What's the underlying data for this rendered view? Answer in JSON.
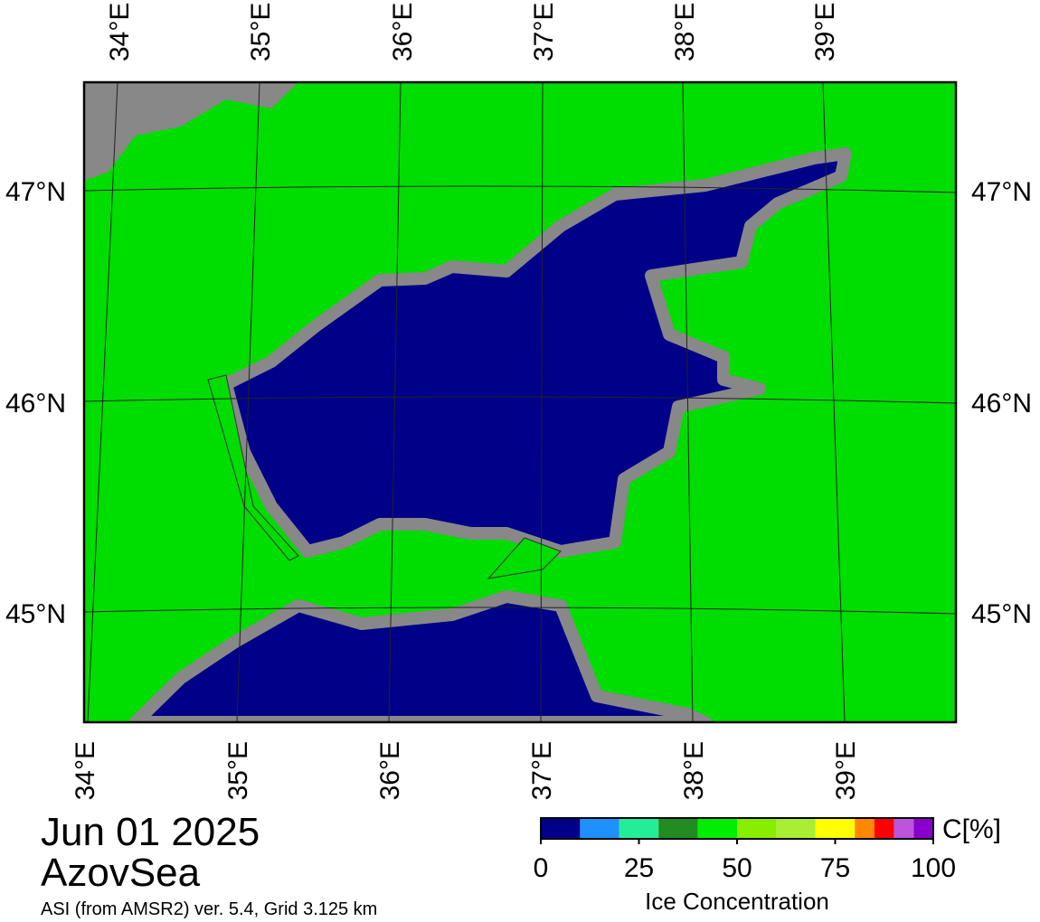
{
  "map": {
    "top_lon_labels": [
      "34°E",
      "35°E",
      "36°E",
      "37°E",
      "38°E",
      "39°E"
    ],
    "bottom_lon_labels": [
      "34°E",
      "35°E",
      "36°E",
      "37°E",
      "38°E",
      "39°E"
    ],
    "left_lat_labels": [
      "47°N",
      "46°N",
      "45°N"
    ],
    "right_lat_labels": [
      "47°N",
      "46°N",
      "45°N"
    ],
    "date": "Jun 01 2025",
    "region": "AzovSea",
    "source": "ASI (from AMSR2) ver. 5.4,  Grid 3.125 km"
  },
  "colorbar": {
    "unit": "C[%]",
    "label": "Ice Concentration",
    "range": [
      0,
      100
    ],
    "ticks": [
      0,
      25,
      50,
      75,
      100
    ],
    "bounds": [
      0,
      10,
      20,
      30,
      40,
      50,
      60,
      70,
      80,
      85,
      90,
      95,
      100
    ],
    "colors": [
      "#000088",
      "#1e90ff",
      "#22ee99",
      "#228b22",
      "#00ee00",
      "#88ee00",
      "#aaee33",
      "#ffff00",
      "#ff8800",
      "#ff0000",
      "#bb55dd",
      "#8800cc"
    ]
  }
}
